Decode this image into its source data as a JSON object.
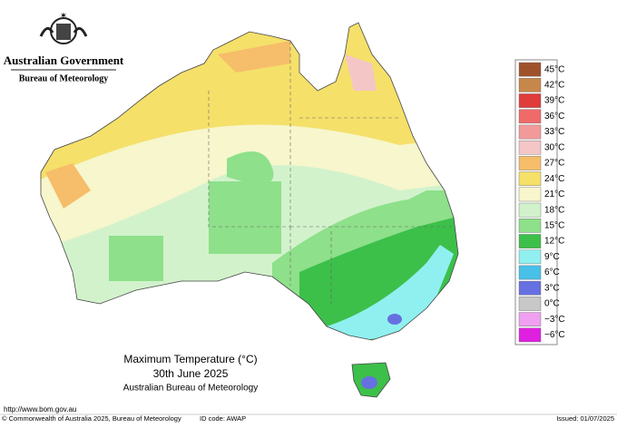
{
  "header": {
    "agency": "Australian Government",
    "bureau": "Bureau of Meteorology"
  },
  "map": {
    "title": "Maximum Temperature (°C)",
    "date": "30th June 2025",
    "source": "Australian Bureau of Meteorology"
  },
  "legend": {
    "items": [
      {
        "label": "45°C",
        "color": "#a0522d"
      },
      {
        "label": "42°C",
        "color": "#c8874a"
      },
      {
        "label": "39°C",
        "color": "#e03c3c"
      },
      {
        "label": "36°C",
        "color": "#f06a6a"
      },
      {
        "label": "33°C",
        "color": "#f29a9a"
      },
      {
        "label": "30°C",
        "color": "#f4c6c6"
      },
      {
        "label": "27°C",
        "color": "#f6bd6a"
      },
      {
        "label": "24°C",
        "color": "#f5e06a"
      },
      {
        "label": "21°C",
        "color": "#f7f6cc"
      },
      {
        "label": "18°C",
        "color": "#d2f2cc"
      },
      {
        "label": "15°C",
        "color": "#8ee08a"
      },
      {
        "label": "12°C",
        "color": "#3cc04a"
      },
      {
        "label": "9°C",
        "color": "#90f0f0"
      },
      {
        "label": "6°C",
        "color": "#48c0e8"
      },
      {
        "label": "3°C",
        "color": "#6670e0"
      },
      {
        "label": "0°C",
        "color": "#c8c8c8"
      },
      {
        "label": "−3°C",
        "color": "#f0a0f0"
      },
      {
        "label": "−6°C",
        "color": "#e020e0"
      }
    ]
  },
  "footer": {
    "url": "http://www.bom.gov.au",
    "copyright": "© Commonwealth of Australia 2025, Bureau of Meteorology",
    "id_code": "ID code: AWAP",
    "issued": "Issued: 01/07/2025"
  }
}
